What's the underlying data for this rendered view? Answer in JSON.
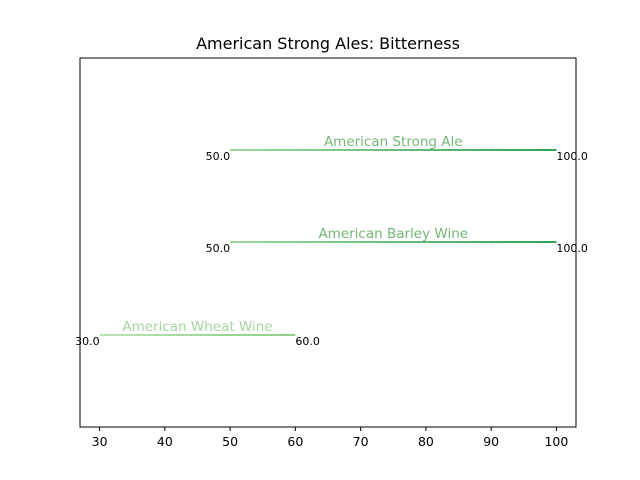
{
  "chart_data": {
    "type": "range",
    "title": "American Strong Ales: Bitterness",
    "xlabel": "",
    "ylabel": "",
    "xlim": [
      27,
      103
    ],
    "xticks": [
      30,
      40,
      50,
      60,
      70,
      80,
      90,
      100
    ],
    "grid": false,
    "ranges": [
      {
        "label": "American Strong Ale",
        "low": 50.0,
        "high": 100.0,
        "low_label": "50.0",
        "high_label": "100.0",
        "color_start": "#a1d99b",
        "color_end": "#31a354",
        "label_color": "#74b776"
      },
      {
        "label": "American Barley Wine",
        "low": 50.0,
        "high": 100.0,
        "low_label": "50.0",
        "high_label": "100.0",
        "color_start": "#a1d99b",
        "color_end": "#31a354",
        "label_color": "#74b776"
      },
      {
        "label": "American Wheat Wine",
        "low": 30.0,
        "high": 60.0,
        "low_label": "30.0",
        "high_label": "60.0",
        "color_start": "#b8e3b2",
        "color_end": "#8fcf88",
        "label_color": "#a5d6a0"
      }
    ]
  }
}
